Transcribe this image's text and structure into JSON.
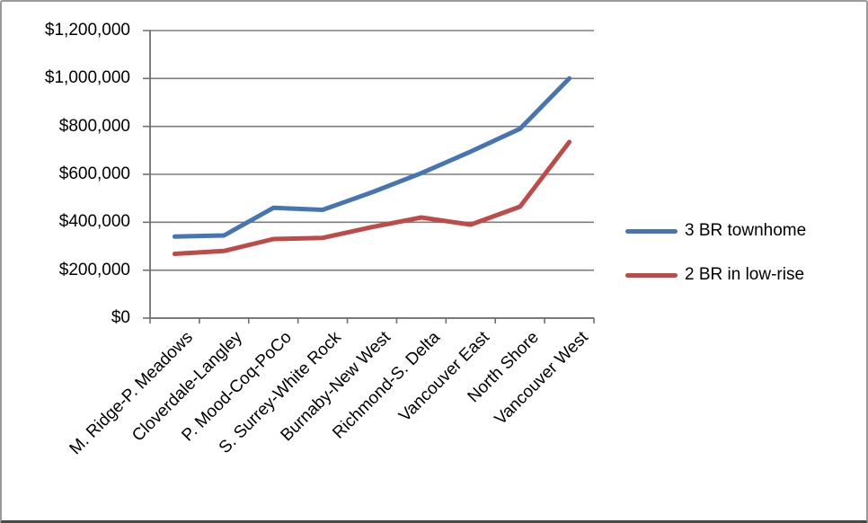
{
  "chart_data": {
    "type": "line",
    "title": "",
    "xlabel": "",
    "ylabel": "",
    "categories": [
      "M. Ridge-P. Meadows",
      "Cloverdale-Langley",
      "P. Mood-Coq-PoCo",
      "S. Surrey-White Rock",
      "Burnaby-New West",
      "Richmond-S. Delta",
      "Vancouver East",
      "North Shore",
      "Vancouver West"
    ],
    "series": [
      {
        "name": "3 BR townhome",
        "color": "#4775B2",
        "values": [
          340000,
          345000,
          460000,
          452000,
          525000,
          605000,
          695000,
          790000,
          1000000
        ]
      },
      {
        "name": "2 BR in low-rise",
        "color": "#BE4B48",
        "values": [
          268000,
          280000,
          330000,
          335000,
          380000,
          420000,
          390000,
          465000,
          735000
        ]
      }
    ],
    "y_axis": {
      "min": 0,
      "max": 1200000,
      "step": 200000,
      "tick_labels": [
        "$0",
        "$200,000",
        "$400,000",
        "$600,000",
        "$800,000",
        "$1,000,000",
        "$1,200,000"
      ]
    },
    "grid": true,
    "legend_position": "right"
  },
  "colors": {
    "gridline": "#7E7E7E",
    "axis": "#6F6F6F",
    "text": "#000000",
    "background": "#FFFFFF"
  }
}
